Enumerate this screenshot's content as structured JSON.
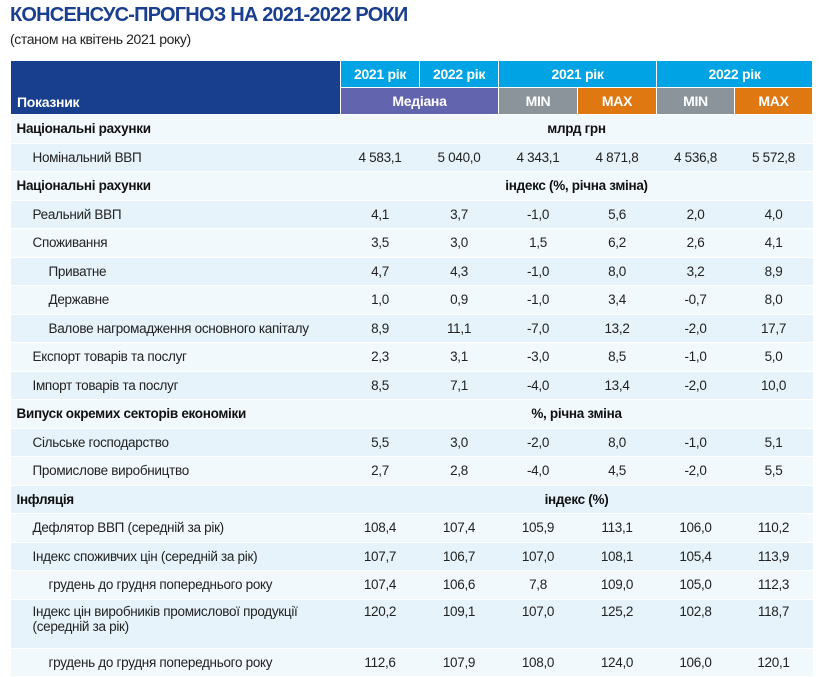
{
  "title": "КОНСЕНСУС-ПРОГНОЗ НА 2021-2022 РОКИ",
  "subtitle": "(станом на квітень 2021 року)",
  "header": {
    "indicator": "Показник",
    "y2021": "2021 рік",
    "y2022": "2022 рік",
    "min_y2021": "2021 рік",
    "max_y2022": "2022 рік",
    "median": "Медіана",
    "min": "MIN",
    "max": "MAX"
  },
  "colors": {
    "dark_blue": "#173f8e",
    "cyan": "#00a3e3",
    "median": "#6264ad",
    "min": "#8b949b",
    "max": "#e07812"
  },
  "rows": [
    {
      "type": "section",
      "label": "Національні рахунки",
      "unit": "млрд грн"
    },
    {
      "type": "item",
      "level": 1,
      "label": "Номінальний ВВП",
      "values": [
        "4 583,1",
        "5 040,0",
        "4 343,1",
        "4 871,8",
        "4 536,8",
        "5 572,8"
      ]
    },
    {
      "type": "section",
      "label": "Національні рахунки",
      "unit": "індекс (%, річна зміна)"
    },
    {
      "type": "item",
      "level": 1,
      "label": "Реальний ВВП",
      "values": [
        "4,1",
        "3,7",
        "-1,0",
        "5,6",
        "2,0",
        "4,0"
      ]
    },
    {
      "type": "item",
      "level": 1,
      "label": "Споживання",
      "values": [
        "3,5",
        "3,0",
        "1,5",
        "6,2",
        "2,6",
        "4,1"
      ]
    },
    {
      "type": "item",
      "level": 2,
      "label": "Приватне",
      "values": [
        "4,7",
        "4,3",
        "-1,0",
        "8,0",
        "3,2",
        "8,9"
      ]
    },
    {
      "type": "item",
      "level": 2,
      "label": "Державне",
      "values": [
        "1,0",
        "0,9",
        "-1,0",
        "3,4",
        "-0,7",
        "8,0"
      ]
    },
    {
      "type": "item",
      "level": 2,
      "label": "Валове нагромадження основного капіталу",
      "values": [
        "8,9",
        "11,1",
        "-7,0",
        "13,2",
        "-2,0",
        "17,7"
      ]
    },
    {
      "type": "item",
      "level": 1,
      "label": "Експорт товарів та послуг",
      "values": [
        "2,3",
        "3,1",
        "-3,0",
        "8,5",
        "-1,0",
        "5,0"
      ]
    },
    {
      "type": "item",
      "level": 1,
      "label": "Імпорт товарів та послуг",
      "values": [
        "8,5",
        "7,1",
        "-4,0",
        "13,4",
        "-2,0",
        "10,0"
      ]
    },
    {
      "type": "section",
      "label": "Випуск окремих секторів економіки",
      "unit": "%, річна зміна"
    },
    {
      "type": "item",
      "level": 1,
      "label": "Сільське господарство",
      "values": [
        "5,5",
        "3,0",
        "-2,0",
        "8,0",
        "-1,0",
        "5,1"
      ]
    },
    {
      "type": "item",
      "level": 1,
      "label": "Промислове виробництво",
      "values": [
        "2,7",
        "2,8",
        "-4,0",
        "4,5",
        "-2,0",
        "5,5"
      ]
    },
    {
      "type": "section",
      "label": "Інфляція",
      "unit": "індекс (%)"
    },
    {
      "type": "item",
      "level": 1,
      "label": "Дефлятор ВВП (середній за рік)",
      "values": [
        "108,4",
        "107,4",
        "105,9",
        "113,1",
        "106,0",
        "110,2"
      ]
    },
    {
      "type": "item",
      "level": 1,
      "label": "Індекс споживчих цін (середній за рік)",
      "values": [
        "107,7",
        "106,7",
        "107,0",
        "108,1",
        "105,4",
        "113,9"
      ]
    },
    {
      "type": "item",
      "level": 2,
      "label": "грудень до грудня попереднього року",
      "values": [
        "107,4",
        "106,6",
        "7,8",
        "109,0",
        "105,0",
        "112,3"
      ]
    },
    {
      "type": "item",
      "level": 1,
      "tall": true,
      "label": "Індекс цін виробників промислової продукції (середній за рік)",
      "values": [
        "120,2",
        "109,1",
        "107,0",
        "125,2",
        "102,8",
        "118,7"
      ]
    },
    {
      "type": "item",
      "level": 2,
      "label": "грудень до грудня попереднього року",
      "values": [
        "112,6",
        "107,9",
        "108,0",
        "124,0",
        "106,0",
        "120,1"
      ]
    }
  ]
}
